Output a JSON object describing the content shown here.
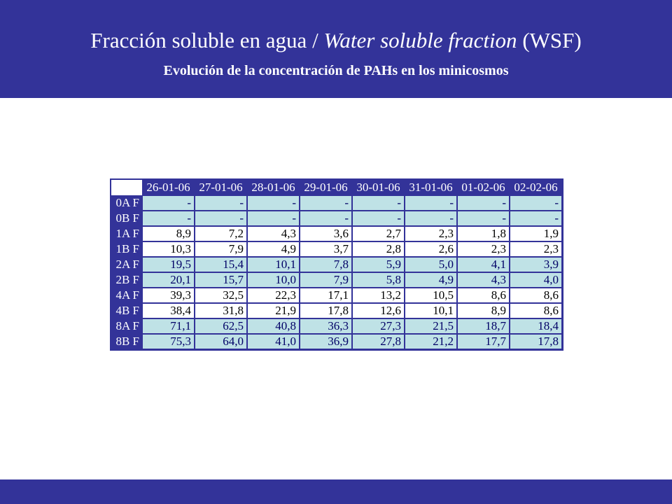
{
  "header": {
    "title_part1": "Fracción soluble en agua / ",
    "title_italic": "Water soluble fraction",
    "title_part2": " (WSF)",
    "subtitle": "Evolución de la concentración de PAHs en los minicosmos"
  },
  "colors": {
    "band": "#333399",
    "cell_light_blue": "#bfe2e6",
    "cell_white": "#ffffff"
  },
  "table": {
    "columns": [
      "26-01-06",
      "27-01-06",
      "28-01-06",
      "29-01-06",
      "30-01-06",
      "31-01-06",
      "01-02-06",
      "02-02-06"
    ],
    "rows": [
      {
        "label": "0A F",
        "style": "blue",
        "values": [
          "-",
          "-",
          "-",
          "-",
          "-",
          "-",
          "-",
          "-"
        ]
      },
      {
        "label": "0B F",
        "style": "blue",
        "values": [
          "-",
          "-",
          "-",
          "-",
          "-",
          "-",
          "-",
          "-"
        ]
      },
      {
        "label": "1A F",
        "style": "white",
        "values": [
          "8,9",
          "7,2",
          "4,3",
          "3,6",
          "2,7",
          "2,3",
          "1,8",
          "1,9"
        ]
      },
      {
        "label": "1B F",
        "style": "white",
        "values": [
          "10,3",
          "7,9",
          "4,9",
          "3,7",
          "2,8",
          "2,6",
          "2,3",
          "2,3"
        ]
      },
      {
        "label": "2A F",
        "style": "blue",
        "values": [
          "19,5",
          "15,4",
          "10,1",
          "7,8",
          "5,9",
          "5,0",
          "4,1",
          "3,9"
        ]
      },
      {
        "label": "2B F",
        "style": "blue",
        "values": [
          "20,1",
          "15,7",
          "10,0",
          "7,9",
          "5,8",
          "4,9",
          "4,3",
          "4,0"
        ]
      },
      {
        "label": "4A F",
        "style": "white",
        "values": [
          "39,3",
          "32,5",
          "22,3",
          "17,1",
          "13,2",
          "10,5",
          "8,6",
          "8,6"
        ]
      },
      {
        "label": "4B F",
        "style": "white",
        "values": [
          "38,4",
          "31,8",
          "21,9",
          "17,8",
          "12,6",
          "10,1",
          "8,9",
          "8,6"
        ]
      },
      {
        "label": "8A F",
        "style": "blue",
        "values": [
          "71,1",
          "62,5",
          "40,8",
          "36,3",
          "27,3",
          "21,5",
          "18,7",
          "18,4"
        ]
      },
      {
        "label": "8B F",
        "style": "blue",
        "values": [
          "75,3",
          "64,0",
          "41,0",
          "36,9",
          "27,8",
          "21,2",
          "17,7",
          "17,8"
        ]
      }
    ]
  }
}
